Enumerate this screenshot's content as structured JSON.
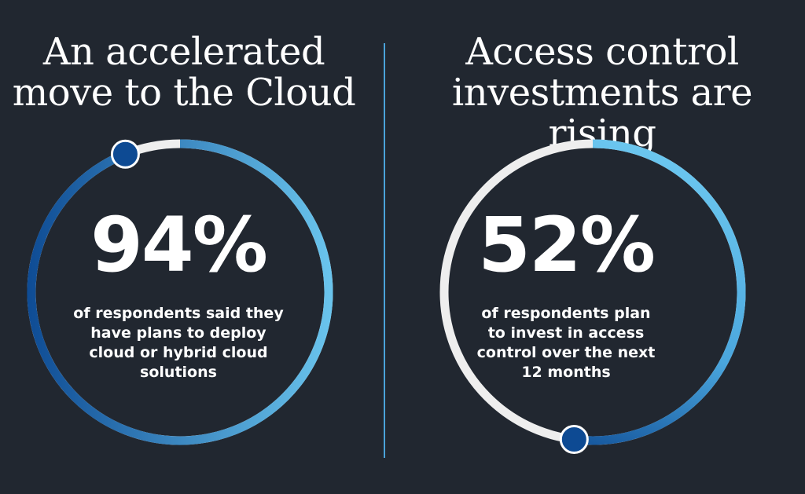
{
  "colors": {
    "background": "#212730",
    "ring_track": "#eeeeee",
    "ring_dark": "#0d4a93",
    "ring_light": "#6cc7ef",
    "knob": "#0d4a93",
    "divider": "#4aa3da",
    "text": "#ffffff"
  },
  "left": {
    "title_line1": "An accelerated",
    "title_line2": "move to the Cloud",
    "stat": "94%",
    "progress": 0.94,
    "desc_line1": "of respondents said they",
    "desc_line2": "have plans to deploy",
    "desc_line3": "cloud or hybrid cloud",
    "desc_line4": "solutions"
  },
  "right": {
    "title_line1": "Access control",
    "title_line2": "investments are rising",
    "stat": "52%",
    "progress": 0.52,
    "desc_line1": "of respondents plan",
    "desc_line2": "to invest in access",
    "desc_line3": "control over the next",
    "desc_line4": "12 months"
  }
}
